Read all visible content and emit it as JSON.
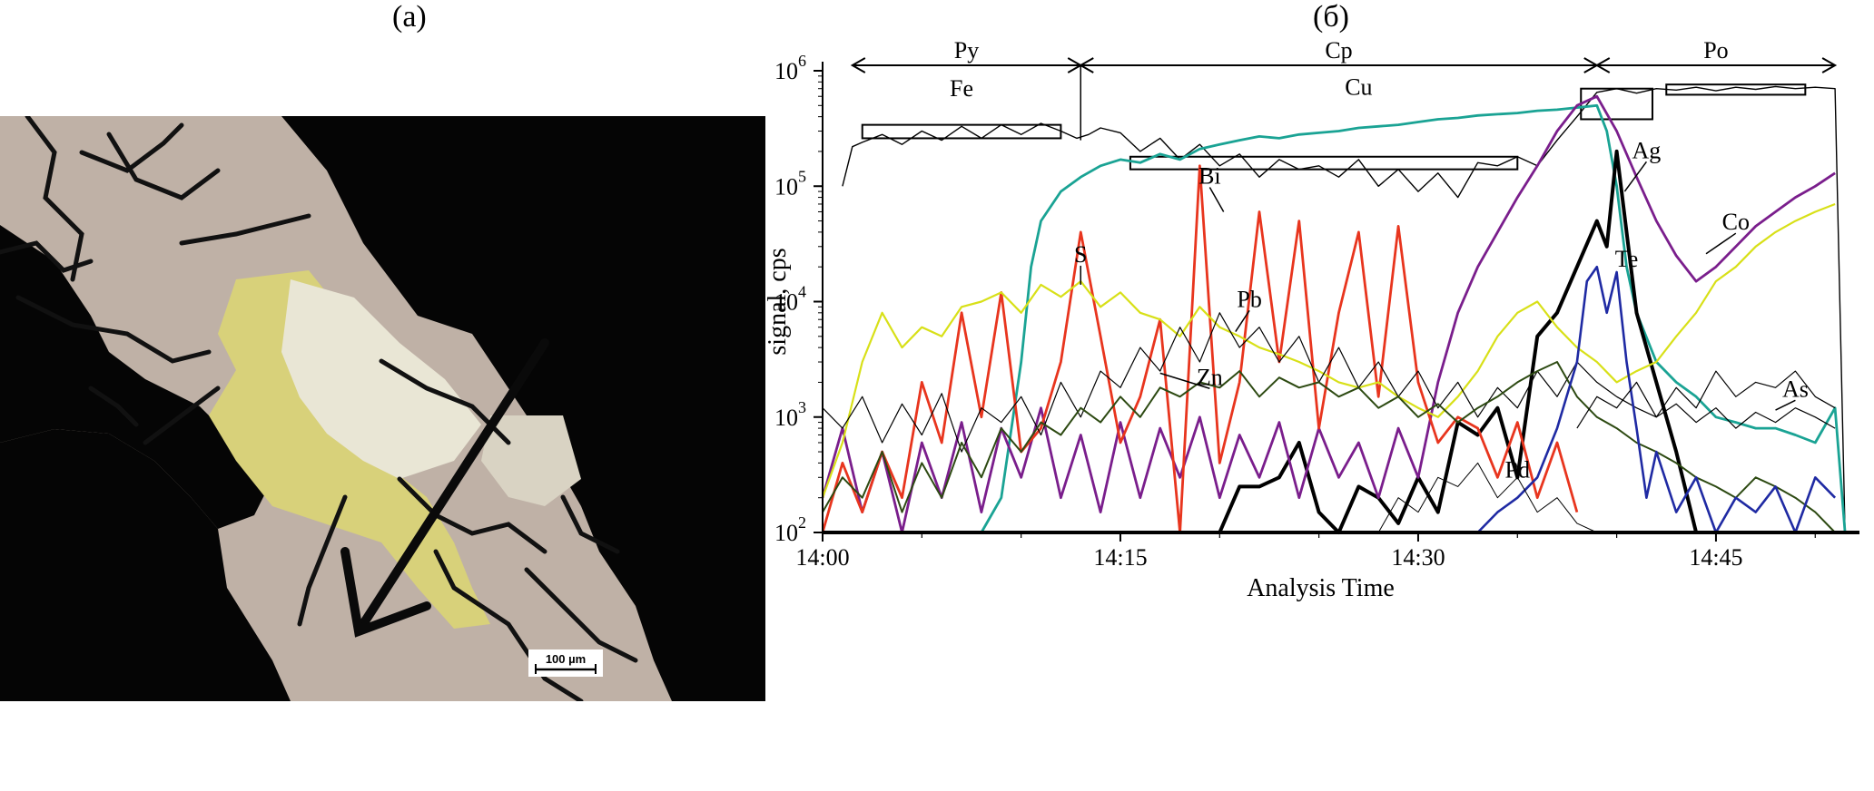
{
  "panels": {
    "left": "(а)",
    "right": "(б)"
  },
  "scale_bar": "100 µm",
  "chart_data": {
    "type": "line",
    "xlabel": "Analysis Time",
    "ylabel": "signal, cps",
    "yscale": "log",
    "ylim": [
      100,
      1000000
    ],
    "xlim_minutes": [
      0,
      52
    ],
    "x_ticks": [
      "14:00",
      "14:15",
      "14:30",
      "14:45"
    ],
    "y_ticks": [
      {
        "value": 100,
        "base": "10",
        "exp": "2"
      },
      {
        "value": 1000,
        "base": "10",
        "exp": "3"
      },
      {
        "value": 10000,
        "base": "10",
        "exp": "4"
      },
      {
        "value": 100000,
        "base": "10",
        "exp": "5"
      },
      {
        "value": 1000000,
        "base": "10",
        "exp": "6"
      }
    ],
    "grid": false,
    "regions": [
      {
        "label": "Py",
        "x_start_min": 1.5,
        "x_end_min": 13
      },
      {
        "label": "Cp",
        "x_start_min": 13,
        "x_end_min": 39
      },
      {
        "label": "Po",
        "x_start_min": 39,
        "x_end_min": 51
      }
    ],
    "series": [
      {
        "name": "Fe",
        "color": "#000000",
        "width": 1.4,
        "x": [
          1,
          1.5,
          2,
          3,
          4,
          5,
          6,
          7,
          8,
          9,
          10,
          11,
          12,
          12.8,
          13.4,
          14,
          15,
          16,
          17,
          18,
          19,
          20,
          21,
          22,
          23,
          24,
          25,
          26,
          27,
          28,
          29,
          30,
          31,
          32,
          33,
          34,
          35,
          36,
          37,
          38,
          39,
          40,
          41,
          42,
          43,
          44,
          45,
          46,
          47,
          48,
          49,
          50,
          51,
          51.5
        ],
        "y": [
          100000,
          220000,
          240000,
          280000,
          230000,
          300000,
          250000,
          330000,
          260000,
          340000,
          280000,
          350000,
          300000,
          260000,
          280000,
          320000,
          290000,
          200000,
          260000,
          170000,
          230000,
          150000,
          190000,
          120000,
          170000,
          140000,
          150000,
          120000,
          170000,
          100000,
          140000,
          90000,
          130000,
          80000,
          160000,
          150000,
          180000,
          150000,
          250000,
          400000,
          650000,
          700000,
          640000,
          700000,
          680000,
          720000,
          670000,
          720000,
          690000,
          730000,
          700000,
          720000,
          700000,
          100
        ]
      },
      {
        "name": "Cu",
        "color": "#1aa394",
        "width": 2.8,
        "x": [
          8,
          9,
          10,
          10.5,
          11,
          12,
          13,
          14,
          15,
          16,
          17,
          18,
          19,
          20,
          21,
          22,
          23,
          24,
          25,
          26,
          27,
          28,
          29,
          30,
          31,
          32,
          33,
          34,
          35,
          36,
          37,
          38,
          39,
          39.5,
          40,
          40.5,
          41,
          42,
          43,
          44,
          45,
          46,
          47,
          48,
          49,
          50,
          51,
          51.5
        ],
        "y": [
          100,
          200,
          3000,
          20000,
          50000,
          90000,
          120000,
          150000,
          170000,
          160000,
          190000,
          170000,
          210000,
          230000,
          250000,
          270000,
          260000,
          280000,
          290000,
          300000,
          320000,
          330000,
          340000,
          360000,
          380000,
          390000,
          410000,
          420000,
          430000,
          450000,
          460000,
          480000,
          500000,
          300000,
          100000,
          20000,
          8000,
          3000,
          2000,
          1500,
          1000,
          900,
          800,
          800,
          700,
          600,
          1200,
          100
        ]
      },
      {
        "name": "Ag",
        "color": "#000000",
        "width": 4,
        "x": [
          20,
          21,
          22,
          23,
          24,
          25,
          26,
          27,
          28,
          29,
          30,
          31,
          32,
          33,
          34,
          35,
          36,
          37,
          38,
          39,
          39.5,
          40,
          40.5,
          41,
          42,
          43,
          44
        ],
        "y": [
          100,
          250,
          250,
          300,
          600,
          150,
          100,
          250,
          200,
          120,
          300,
          150,
          900,
          700,
          1200,
          300,
          5000,
          8000,
          20000,
          50000,
          30000,
          200000,
          40000,
          8000,
          2000,
          500,
          100
        ]
      },
      {
        "name": "Co",
        "color": "#7a1e8c",
        "width": 2.8,
        "x": [
          0,
          1,
          2,
          3,
          4,
          5,
          6,
          7,
          8,
          9,
          10,
          11,
          12,
          13,
          14,
          15,
          16,
          17,
          18,
          19,
          20,
          21,
          22,
          23,
          24,
          25,
          26,
          27,
          28,
          29,
          30,
          31,
          32,
          33,
          34,
          35,
          36,
          37,
          38,
          39,
          40,
          41,
          42,
          43,
          44,
          45,
          46,
          47,
          48,
          49,
          50,
          51
        ],
        "y": [
          200,
          800,
          150,
          500,
          100,
          600,
          200,
          900,
          150,
          800,
          300,
          1200,
          200,
          700,
          150,
          900,
          200,
          800,
          300,
          1000,
          200,
          700,
          300,
          900,
          200,
          800,
          300,
          600,
          200,
          800,
          300,
          2000,
          8000,
          20000,
          40000,
          80000,
          150000,
          300000,
          500000,
          600000,
          300000,
          120000,
          50000,
          25000,
          15000,
          20000,
          30000,
          45000,
          60000,
          80000,
          100000,
          130000
        ]
      },
      {
        "name": "Bi",
        "color": "#e8351e",
        "width": 2.8,
        "x": [
          0,
          1,
          2,
          3,
          4,
          5,
          6,
          7,
          8,
          9,
          10,
          11,
          12,
          13,
          14,
          15,
          16,
          17,
          18,
          19,
          20,
          21,
          22,
          23,
          24,
          25,
          26,
          27,
          28,
          29,
          30,
          31,
          32,
          33,
          34,
          35,
          36,
          37,
          38
        ],
        "y": [
          100,
          400,
          150,
          500,
          200,
          2000,
          600,
          8000,
          1000,
          12000,
          500,
          800,
          3000,
          40000,
          5000,
          600,
          1500,
          7000,
          100,
          150000,
          400,
          2000,
          60000,
          3000,
          50000,
          800,
          8000,
          40000,
          1500,
          45000,
          2000,
          600,
          1000,
          800,
          300,
          900,
          200,
          600,
          150
        ]
      },
      {
        "name": "S",
        "color": "#d8e018",
        "width": 2.2,
        "x": [
          0,
          1,
          2,
          3,
          4,
          5,
          6,
          7,
          8,
          9,
          10,
          11,
          12,
          13,
          14,
          15,
          16,
          17,
          18,
          19,
          20,
          21,
          22,
          23,
          24,
          25,
          26,
          27,
          28,
          29,
          30,
          31,
          32,
          33,
          34,
          35,
          36,
          37,
          38,
          39,
          40,
          41,
          42,
          43,
          44,
          45,
          46,
          47,
          48,
          49,
          50,
          51
        ],
        "y": [
          200,
          600,
          3000,
          8000,
          4000,
          6000,
          5000,
          9000,
          10000,
          12000,
          8000,
          14000,
          11000,
          15000,
          9000,
          12000,
          8000,
          7000,
          5000,
          9000,
          6000,
          5000,
          4000,
          3500,
          3000,
          2500,
          2000,
          1800,
          2000,
          1500,
          1200,
          1000,
          1500,
          2500,
          5000,
          8000,
          10000,
          6000,
          4000,
          3000,
          2000,
          2500,
          3000,
          5000,
          8000,
          15000,
          20000,
          30000,
          40000,
          50000,
          60000,
          70000
        ]
      },
      {
        "name": "Pb",
        "color": "#000000",
        "width": 1.2,
        "x": [
          0,
          1,
          2,
          3,
          4,
          5,
          6,
          7,
          8,
          9,
          10,
          11,
          12,
          13,
          14,
          15,
          16,
          17,
          18,
          19,
          20,
          21,
          22,
          23,
          24,
          25,
          26,
          27,
          28,
          29,
          30,
          31,
          32,
          33,
          34,
          35,
          36,
          37,
          38,
          39,
          40,
          41,
          42,
          43,
          44,
          45,
          46,
          47,
          48,
          49,
          50,
          51
        ],
        "y": [
          1200,
          800,
          1500,
          600,
          1300,
          700,
          1600,
          500,
          1200,
          900,
          1500,
          700,
          2000,
          1000,
          2500,
          1800,
          4000,
          2500,
          6000,
          3000,
          8000,
          4000,
          6000,
          3000,
          5000,
          2000,
          4000,
          1800,
          3000,
          1500,
          2500,
          1200,
          2000,
          1000,
          1800,
          1200,
          2500,
          1500,
          3000,
          2000,
          1500,
          1200,
          1000,
          1300,
          900,
          1200,
          800,
          1100,
          900,
          1200,
          1000,
          800
        ]
      },
      {
        "name": "Zn",
        "color": "#2d4a12",
        "width": 2,
        "x": [
          0,
          1,
          2,
          3,
          4,
          5,
          6,
          7,
          8,
          9,
          10,
          11,
          12,
          13,
          14,
          15,
          16,
          17,
          18,
          19,
          20,
          21,
          22,
          23,
          24,
          25,
          26,
          27,
          28,
          29,
          30,
          31,
          32,
          33,
          34,
          35,
          36,
          37,
          38,
          39,
          40,
          41,
          42,
          43,
          44,
          45,
          46,
          47,
          48,
          49,
          50,
          51
        ],
        "y": [
          150,
          300,
          200,
          500,
          150,
          400,
          200,
          600,
          300,
          800,
          500,
          900,
          700,
          1200,
          900,
          1500,
          1000,
          1800,
          1500,
          2000,
          1800,
          2500,
          1500,
          2200,
          1800,
          2000,
          1500,
          1800,
          1200,
          1500,
          1000,
          1300,
          900,
          1200,
          1500,
          2000,
          2500,
          3000,
          1500,
          1000,
          800,
          600,
          500,
          400,
          300,
          250,
          200,
          300,
          250,
          200,
          150,
          100
        ]
      },
      {
        "name": "Te",
        "color": "#1f2aa3",
        "width": 2.6,
        "x": [
          33,
          34,
          35,
          36,
          37,
          38,
          38.5,
          39,
          39.5,
          40,
          40.5,
          41,
          41.5,
          42,
          43,
          44,
          45,
          46,
          47,
          48,
          49,
          50,
          51
        ],
        "y": [
          100,
          150,
          200,
          300,
          800,
          3000,
          15000,
          20000,
          8000,
          18000,
          3000,
          800,
          200,
          500,
          150,
          300,
          100,
          200,
          150,
          250,
          100,
          300,
          200
        ]
      },
      {
        "name": "Pd",
        "color": "#000000",
        "width": 1,
        "x": [
          28,
          29,
          30,
          31,
          32,
          33,
          34,
          35,
          36,
          37,
          38,
          39,
          40
        ],
        "y": [
          100,
          200,
          150,
          300,
          250,
          400,
          200,
          300,
          150,
          200,
          120,
          100,
          100
        ]
      },
      {
        "name": "As",
        "color": "#000000",
        "width": 1.2,
        "x": [
          38,
          39,
          40,
          41,
          42,
          43,
          44,
          45,
          46,
          47,
          48,
          49,
          50,
          51
        ],
        "y": [
          800,
          1500,
          1200,
          2000,
          1000,
          1800,
          1200,
          2500,
          1500,
          2000,
          1800,
          2500,
          1500,
          1200
        ]
      }
    ],
    "boxes": [
      {
        "x1": 2,
        "x2": 12,
        "y1": 260000,
        "y2": 340000
      },
      {
        "x1": 15.5,
        "x2": 35,
        "y1": 140000,
        "y2": 180000
      },
      {
        "x1": 38.2,
        "x2": 41.8,
        "y1": 380000,
        "y2": 700000
      },
      {
        "x1": 42.5,
        "x2": 49.5,
        "y1": 620000,
        "y2": 760000
      }
    ],
    "annotations": [
      {
        "text": "Fe",
        "x": 7,
        "y": 600000
      },
      {
        "text": "Cu",
        "x": 27,
        "y": 620000
      },
      {
        "text": "Bi",
        "x": 19.5,
        "y": 105000,
        "pointer_to": {
          "x": 20.2,
          "y": 60000
        }
      },
      {
        "text": "S",
        "x": 13,
        "y": 22000,
        "pointer_to": {
          "x": 13,
          "y": 14000
        }
      },
      {
        "text": "Pb",
        "x": 21.5,
        "y": 9000,
        "pointer_to": {
          "x": 20.8,
          "y": 5500
        }
      },
      {
        "text": "Zn",
        "x": 19.5,
        "y": 1900,
        "pointer_to": {
          "x": 17,
          "y": 2400
        }
      },
      {
        "text": "Ag",
        "x": 41.5,
        "y": 175000,
        "pointer_to": {
          "x": 40.4,
          "y": 90000
        }
      },
      {
        "text": "Co",
        "x": 46,
        "y": 42000,
        "pointer_to": {
          "x": 44.5,
          "y": 26000
        }
      },
      {
        "text": "Te",
        "x": 40.5,
        "y": 20000
      },
      {
        "text": "Pd",
        "x": 35,
        "y": 300
      },
      {
        "text": "As",
        "x": 49,
        "y": 1500,
        "pointer_to": {
          "x": 48,
          "y": 1150
        }
      }
    ]
  }
}
